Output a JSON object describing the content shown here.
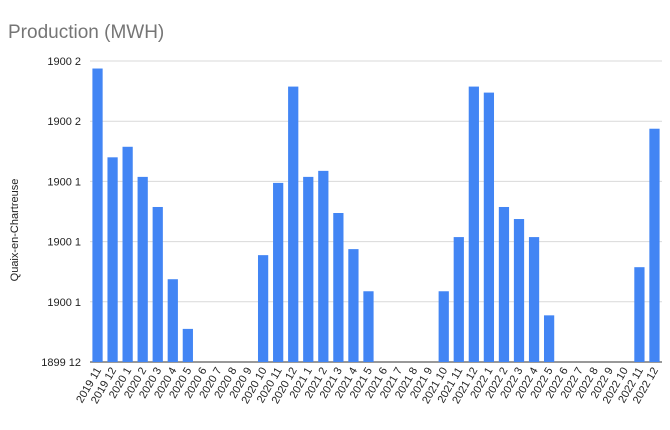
{
  "chart_data": {
    "type": "bar",
    "title": "Production (MWH)",
    "xlabel": "",
    "ylabel": "Quaix-en-Chartreuse",
    "y_tick_labels": [
      "1899 12",
      "1900 1",
      "1900 1",
      "1900 1",
      "1900 2",
      "1900 2"
    ],
    "ylim": [
      0,
      1.0
    ],
    "grid": true,
    "color": "#4285f4",
    "categories": [
      "2019 11",
      "2019 12",
      "2020 1",
      "2020 2",
      "2020 3",
      "2020 4",
      "2020 5",
      "2020 6",
      "2020 7",
      "2020 8",
      "2020 9",
      "2020 10",
      "2020 11",
      "2020 12",
      "2021 1",
      "2021 2",
      "2021 3",
      "2021 4",
      "2021 5",
      "2021 6",
      "2021 7",
      "2021 8",
      "2021 9",
      "2021 10",
      "2021 11",
      "2021 12",
      "2022 1",
      "2022 2",
      "2022 3",
      "2022 4",
      "2022 5",
      "2022 6",
      "2022 7",
      "2022 8",
      "2022 9",
      "2022 10",
      "2022 11",
      "2022 12"
    ],
    "values": [
      0.975,
      0.68,
      0.715,
      0.615,
      0.515,
      0.275,
      0.11,
      0,
      0,
      0,
      0,
      0.355,
      0.595,
      0.915,
      0.615,
      0.635,
      0.495,
      0.375,
      0.235,
      0,
      0,
      0,
      0,
      0.235,
      0.415,
      0.915,
      0.895,
      0.515,
      0.475,
      0.415,
      0.155,
      0,
      0,
      0,
      0,
      0,
      0.315,
      0.775
    ]
  }
}
